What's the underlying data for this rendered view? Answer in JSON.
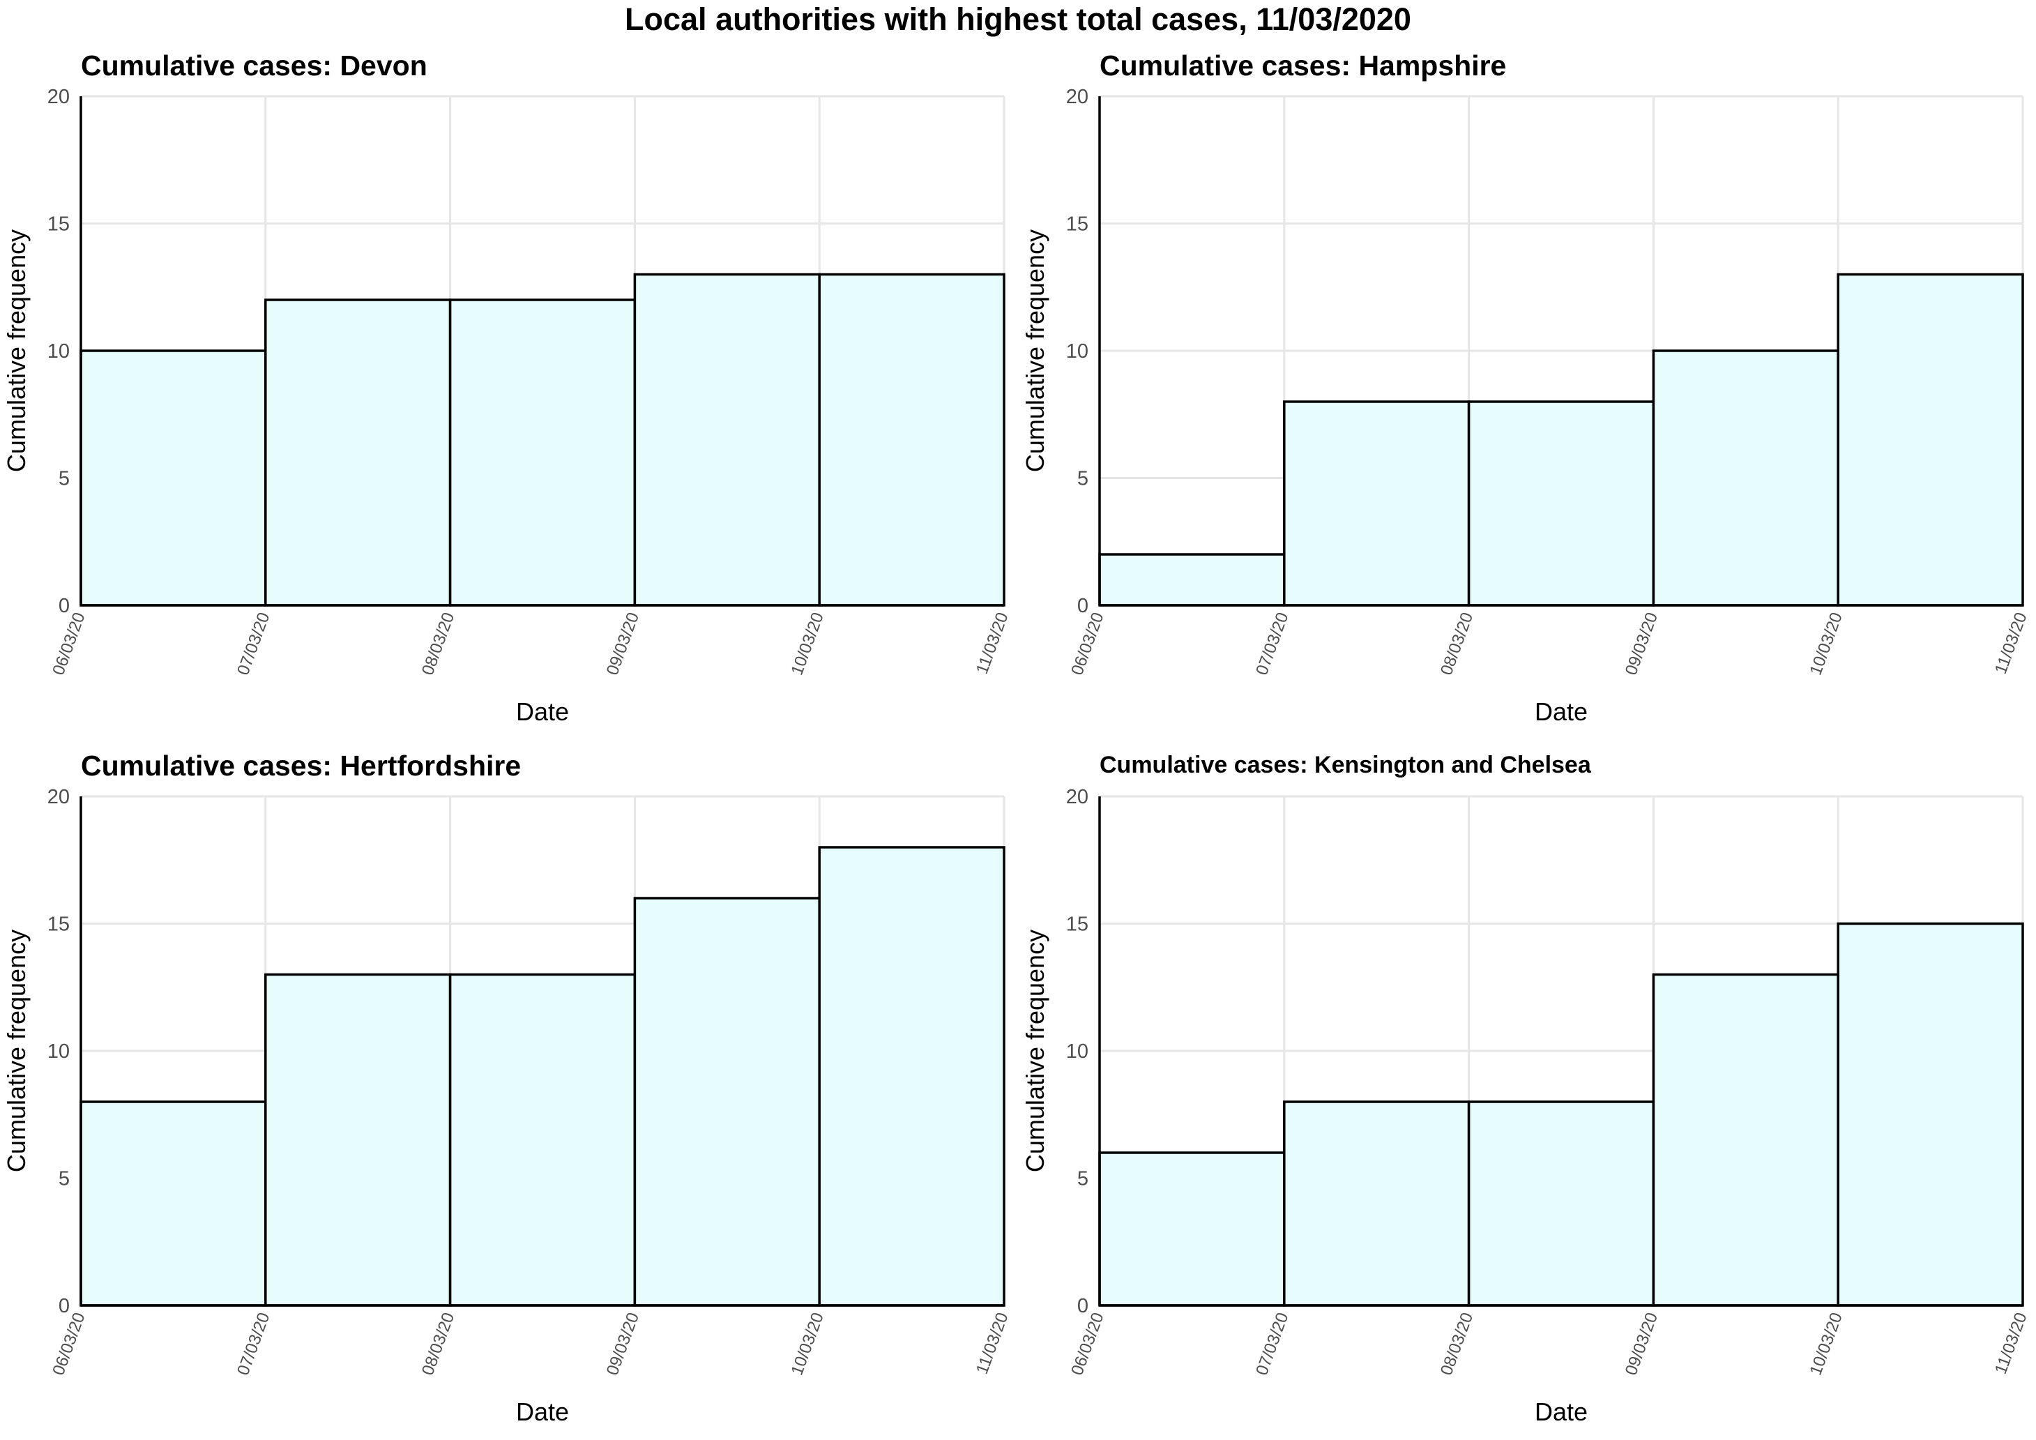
{
  "figure": {
    "title": "Local authorities with highest total cases, 11/03/2020"
  },
  "style": {
    "bar_fill": "#e6fcfd",
    "bar_stroke": "#000000",
    "grid_color": "#e6e6e6"
  },
  "chart_data": [
    {
      "type": "bar",
      "title": "Cumulative cases: Devon",
      "xlabel": "Date",
      "ylabel": "Cumulative frequency",
      "x_ticks": [
        "06/03/20",
        "07/03/20",
        "08/03/20",
        "09/03/20",
        "10/03/20",
        "11/03/20"
      ],
      "y_ticks": [
        0,
        5,
        10,
        15,
        20
      ],
      "ylim": [
        0,
        20
      ],
      "bins": [
        {
          "start": "06/03/20",
          "end": "07/03/20",
          "value": 10
        },
        {
          "start": "07/03/20",
          "end": "08/03/20",
          "value": 12
        },
        {
          "start": "08/03/20",
          "end": "09/03/20",
          "value": 12
        },
        {
          "start": "09/03/20",
          "end": "10/03/20",
          "value": 13
        },
        {
          "start": "10/03/20",
          "end": "11/03/20",
          "value": 13
        }
      ],
      "grid": true,
      "legend": "none"
    },
    {
      "type": "bar",
      "title": "Cumulative cases: Hampshire",
      "xlabel": "Date",
      "ylabel": "Cumulative frequency",
      "x_ticks": [
        "06/03/20",
        "07/03/20",
        "08/03/20",
        "09/03/20",
        "10/03/20",
        "11/03/20"
      ],
      "y_ticks": [
        0,
        5,
        10,
        15,
        20
      ],
      "ylim": [
        0,
        20
      ],
      "bins": [
        {
          "start": "06/03/20",
          "end": "07/03/20",
          "value": 2
        },
        {
          "start": "07/03/20",
          "end": "08/03/20",
          "value": 8
        },
        {
          "start": "08/03/20",
          "end": "09/03/20",
          "value": 8
        },
        {
          "start": "09/03/20",
          "end": "10/03/20",
          "value": 10
        },
        {
          "start": "10/03/20",
          "end": "11/03/20",
          "value": 13
        }
      ],
      "grid": true,
      "legend": "none"
    },
    {
      "type": "bar",
      "title": "Cumulative cases: Hertfordshire",
      "xlabel": "Date",
      "ylabel": "Cumulative frequency",
      "x_ticks": [
        "06/03/20",
        "07/03/20",
        "08/03/20",
        "09/03/20",
        "10/03/20",
        "11/03/20"
      ],
      "y_ticks": [
        0,
        5,
        10,
        15,
        20
      ],
      "ylim": [
        0,
        20
      ],
      "bins": [
        {
          "start": "06/03/20",
          "end": "07/03/20",
          "value": 8
        },
        {
          "start": "07/03/20",
          "end": "08/03/20",
          "value": 13
        },
        {
          "start": "08/03/20",
          "end": "09/03/20",
          "value": 13
        },
        {
          "start": "09/03/20",
          "end": "10/03/20",
          "value": 16
        },
        {
          "start": "10/03/20",
          "end": "11/03/20",
          "value": 18
        }
      ],
      "grid": true,
      "legend": "none"
    },
    {
      "type": "bar",
      "title": "Cumulative cases: Kensington and Chelsea",
      "xlabel": "Date",
      "ylabel": "Cumulative frequency",
      "x_ticks": [
        "06/03/20",
        "07/03/20",
        "08/03/20",
        "09/03/20",
        "10/03/20",
        "11/03/20"
      ],
      "y_ticks": [
        0,
        5,
        10,
        15,
        20
      ],
      "ylim": [
        0,
        20
      ],
      "bins": [
        {
          "start": "06/03/20",
          "end": "07/03/20",
          "value": 6
        },
        {
          "start": "07/03/20",
          "end": "08/03/20",
          "value": 8
        },
        {
          "start": "08/03/20",
          "end": "09/03/20",
          "value": 8
        },
        {
          "start": "09/03/20",
          "end": "10/03/20",
          "value": 13
        },
        {
          "start": "10/03/20",
          "end": "11/03/20",
          "value": 15
        }
      ],
      "grid": true,
      "legend": "none"
    }
  ]
}
